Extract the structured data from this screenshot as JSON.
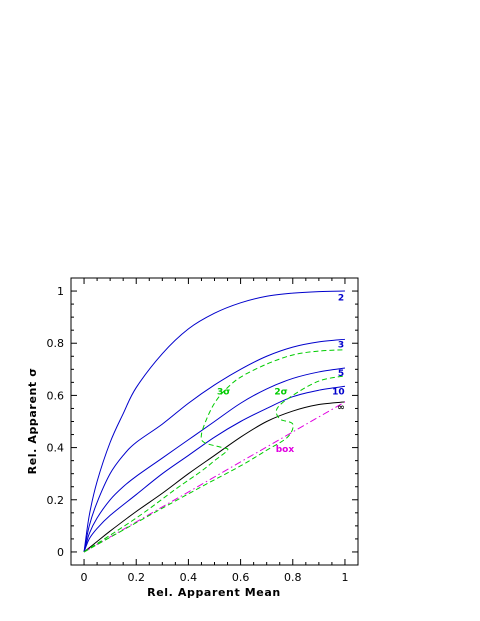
{
  "chart_data": {
    "type": "line",
    "title": "",
    "xlabel": "Rel. Apparent Mean",
    "ylabel": "Rel. Apparent σ",
    "xlim": [
      -0.05,
      1.05
    ],
    "ylim": [
      -0.05,
      1.05
    ],
    "xticks": [
      0,
      0.2,
      0.4,
      0.6,
      0.8,
      1
    ],
    "xtick_labels": [
      "0",
      "0.2",
      "0.4",
      "0.6",
      "0.8",
      "1"
    ],
    "yticks": [
      0,
      0.2,
      0.4,
      0.6,
      0.8,
      1
    ],
    "ytick_labels": [
      "0",
      "0.2",
      "0.4",
      "0.6",
      "0.8",
      "1"
    ],
    "grid": false,
    "series": [
      {
        "label": "2",
        "color": "#0000cc",
        "style": "solid",
        "points": [
          [
            0,
            0
          ],
          [
            0.02,
            0.14
          ],
          [
            0.05,
            0.27
          ],
          [
            0.1,
            0.42
          ],
          [
            0.15,
            0.53
          ],
          [
            0.2,
            0.63
          ],
          [
            0.3,
            0.76
          ],
          [
            0.4,
            0.855
          ],
          [
            0.5,
            0.915
          ],
          [
            0.6,
            0.955
          ],
          [
            0.7,
            0.98
          ],
          [
            0.8,
            0.992
          ],
          [
            0.9,
            0.998
          ],
          [
            1.0,
            1.0
          ]
        ]
      },
      {
        "label": "3",
        "color": "#0000cc",
        "style": "solid",
        "points": [
          [
            0,
            0
          ],
          [
            0.02,
            0.1
          ],
          [
            0.05,
            0.19
          ],
          [
            0.1,
            0.3
          ],
          [
            0.15,
            0.37
          ],
          [
            0.2,
            0.42
          ],
          [
            0.3,
            0.49
          ],
          [
            0.4,
            0.57
          ],
          [
            0.5,
            0.64
          ],
          [
            0.6,
            0.7
          ],
          [
            0.7,
            0.75
          ],
          [
            0.8,
            0.785
          ],
          [
            0.9,
            0.805
          ],
          [
            1.0,
            0.815
          ]
        ]
      },
      {
        "label": "5",
        "color": "#0000cc",
        "style": "solid",
        "points": [
          [
            0,
            0
          ],
          [
            0.02,
            0.07
          ],
          [
            0.05,
            0.13
          ],
          [
            0.1,
            0.2
          ],
          [
            0.15,
            0.25
          ],
          [
            0.2,
            0.29
          ],
          [
            0.3,
            0.36
          ],
          [
            0.4,
            0.43
          ],
          [
            0.5,
            0.5
          ],
          [
            0.6,
            0.57
          ],
          [
            0.7,
            0.625
          ],
          [
            0.8,
            0.665
          ],
          [
            0.9,
            0.69
          ],
          [
            1.0,
            0.705
          ]
        ]
      },
      {
        "label": "10",
        "color": "#0000cc",
        "style": "solid",
        "points": [
          [
            0,
            0
          ],
          [
            0.02,
            0.05
          ],
          [
            0.05,
            0.09
          ],
          [
            0.1,
            0.14
          ],
          [
            0.2,
            0.22
          ],
          [
            0.3,
            0.3
          ],
          [
            0.4,
            0.37
          ],
          [
            0.5,
            0.44
          ],
          [
            0.6,
            0.5
          ],
          [
            0.7,
            0.55
          ],
          [
            0.8,
            0.595
          ],
          [
            0.9,
            0.62
          ],
          [
            1.0,
            0.635
          ]
        ]
      },
      {
        "label": "∞",
        "color": "#000000",
        "style": "solid",
        "points": [
          [
            0,
            0
          ],
          [
            0.05,
            0.04
          ],
          [
            0.1,
            0.08
          ],
          [
            0.2,
            0.155
          ],
          [
            0.3,
            0.225
          ],
          [
            0.4,
            0.3
          ],
          [
            0.5,
            0.37
          ],
          [
            0.6,
            0.44
          ],
          [
            0.7,
            0.5
          ],
          [
            0.8,
            0.54
          ],
          [
            0.9,
            0.565
          ],
          [
            1.0,
            0.575
          ]
        ]
      },
      {
        "label": "box",
        "color": "#e000e0",
        "style": "dashdot",
        "points": [
          [
            0,
            0
          ],
          [
            1.0,
            0.575
          ]
        ]
      },
      {
        "label": "3σ",
        "color": "#00cc00",
        "style": "dashed",
        "points": [
          [
            0,
            0
          ],
          [
            0.2,
            0.13
          ],
          [
            0.35,
            0.24
          ],
          [
            0.45,
            0.31
          ],
          [
            0.5,
            0.35
          ],
          [
            0.55,
            0.39
          ],
          [
            0.53,
            0.4
          ],
          [
            0.46,
            0.42
          ],
          [
            0.45,
            0.45
          ],
          [
            0.47,
            0.51
          ],
          [
            0.5,
            0.57
          ],
          [
            0.54,
            0.62
          ],
          [
            0.6,
            0.67
          ],
          [
            0.7,
            0.72
          ],
          [
            0.8,
            0.755
          ],
          [
            0.9,
            0.77
          ],
          [
            1.0,
            0.775
          ]
        ]
      },
      {
        "label": "2σ",
        "color": "#00cc00",
        "style": "dashed",
        "points": [
          [
            0,
            0
          ],
          [
            0.25,
            0.14
          ],
          [
            0.45,
            0.25
          ],
          [
            0.6,
            0.33
          ],
          [
            0.7,
            0.39
          ],
          [
            0.78,
            0.44
          ],
          [
            0.8,
            0.49
          ],
          [
            0.75,
            0.51
          ],
          [
            0.74,
            0.55
          ],
          [
            0.8,
            0.6
          ],
          [
            0.9,
            0.655
          ],
          [
            1.0,
            0.675
          ]
        ]
      }
    ],
    "annotations": [
      {
        "text": "2",
        "x": 0.985,
        "y": 0.975,
        "color": "#0000cc"
      },
      {
        "text": "3",
        "x": 0.985,
        "y": 0.795,
        "color": "#0000cc"
      },
      {
        "text": "5",
        "x": 0.985,
        "y": 0.685,
        "color": "#0000cc"
      },
      {
        "text": "10",
        "x": 0.975,
        "y": 0.615,
        "color": "#0000cc"
      },
      {
        "text": "∞",
        "x": 0.985,
        "y": 0.555,
        "color": "#000000"
      },
      {
        "text": "3σ",
        "x": 0.535,
        "y": 0.615,
        "color": "#00cc00"
      },
      {
        "text": "2σ",
        "x": 0.755,
        "y": 0.615,
        "color": "#00cc00"
      },
      {
        "text": "box",
        "x": 0.77,
        "y": 0.395,
        "color": "#e000e0"
      }
    ]
  }
}
